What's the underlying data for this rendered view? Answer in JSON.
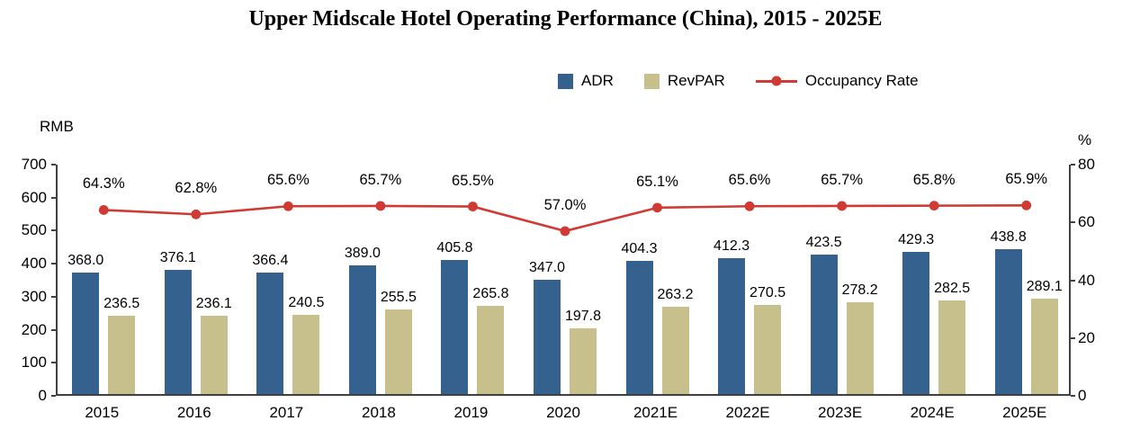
{
  "title": "Upper Midscale Hotel Operating Performance (China), 2015 - 2025E",
  "chart_data": {
    "type": "bar+line",
    "title": "Upper Midscale Hotel Operating Performance (China), 2015 - 2025E",
    "categories": [
      "2015",
      "2016",
      "2017",
      "2018",
      "2019",
      "2020",
      "2021E",
      "2022E",
      "2023E",
      "2024E",
      "2025E"
    ],
    "series": [
      {
        "name": "ADR",
        "type": "bar",
        "axis": "left",
        "color": "#35618E",
        "values": [
          368.0,
          376.1,
          366.4,
          389.0,
          405.8,
          347.0,
          404.3,
          412.3,
          423.5,
          429.3,
          438.8
        ],
        "labels": [
          "368.0",
          "376.1",
          "366.4",
          "389.0",
          "405.8",
          "347.0",
          "404.3",
          "412.3",
          "423.5",
          "429.3",
          "438.8"
        ]
      },
      {
        "name": "RevPAR",
        "type": "bar",
        "axis": "left",
        "color": "#C7BF8C",
        "values": [
          236.5,
          236.1,
          240.5,
          255.5,
          265.8,
          197.8,
          263.2,
          270.5,
          278.2,
          282.5,
          289.1
        ],
        "labels": [
          "236.5",
          "236.1",
          "240.5",
          "255.5",
          "265.8",
          "197.8",
          "263.2",
          "270.5",
          "278.2",
          "282.5",
          "289.1"
        ]
      },
      {
        "name": "Occupancy Rate",
        "type": "line",
        "axis": "right",
        "color": "#CF3B34",
        "values": [
          64.3,
          62.8,
          65.6,
          65.7,
          65.5,
          57.0,
          65.1,
          65.6,
          65.7,
          65.8,
          65.9
        ],
        "labels": [
          "64.3%",
          "62.8%",
          "65.6%",
          "65.7%",
          "65.5%",
          "57.0%",
          "65.1%",
          "65.6%",
          "65.7%",
          "65.8%",
          "65.9%"
        ]
      }
    ],
    "left_axis": {
      "label": "RMB",
      "min": 0,
      "max": 700,
      "step": 100,
      "ticks": [
        0,
        100,
        200,
        300,
        400,
        500,
        600,
        700
      ]
    },
    "right_axis": {
      "label": "%",
      "min": 0,
      "max": 80,
      "step": 20,
      "ticks": [
        0,
        20,
        40,
        60,
        80
      ]
    },
    "legend_position": "top",
    "grid": false
  }
}
